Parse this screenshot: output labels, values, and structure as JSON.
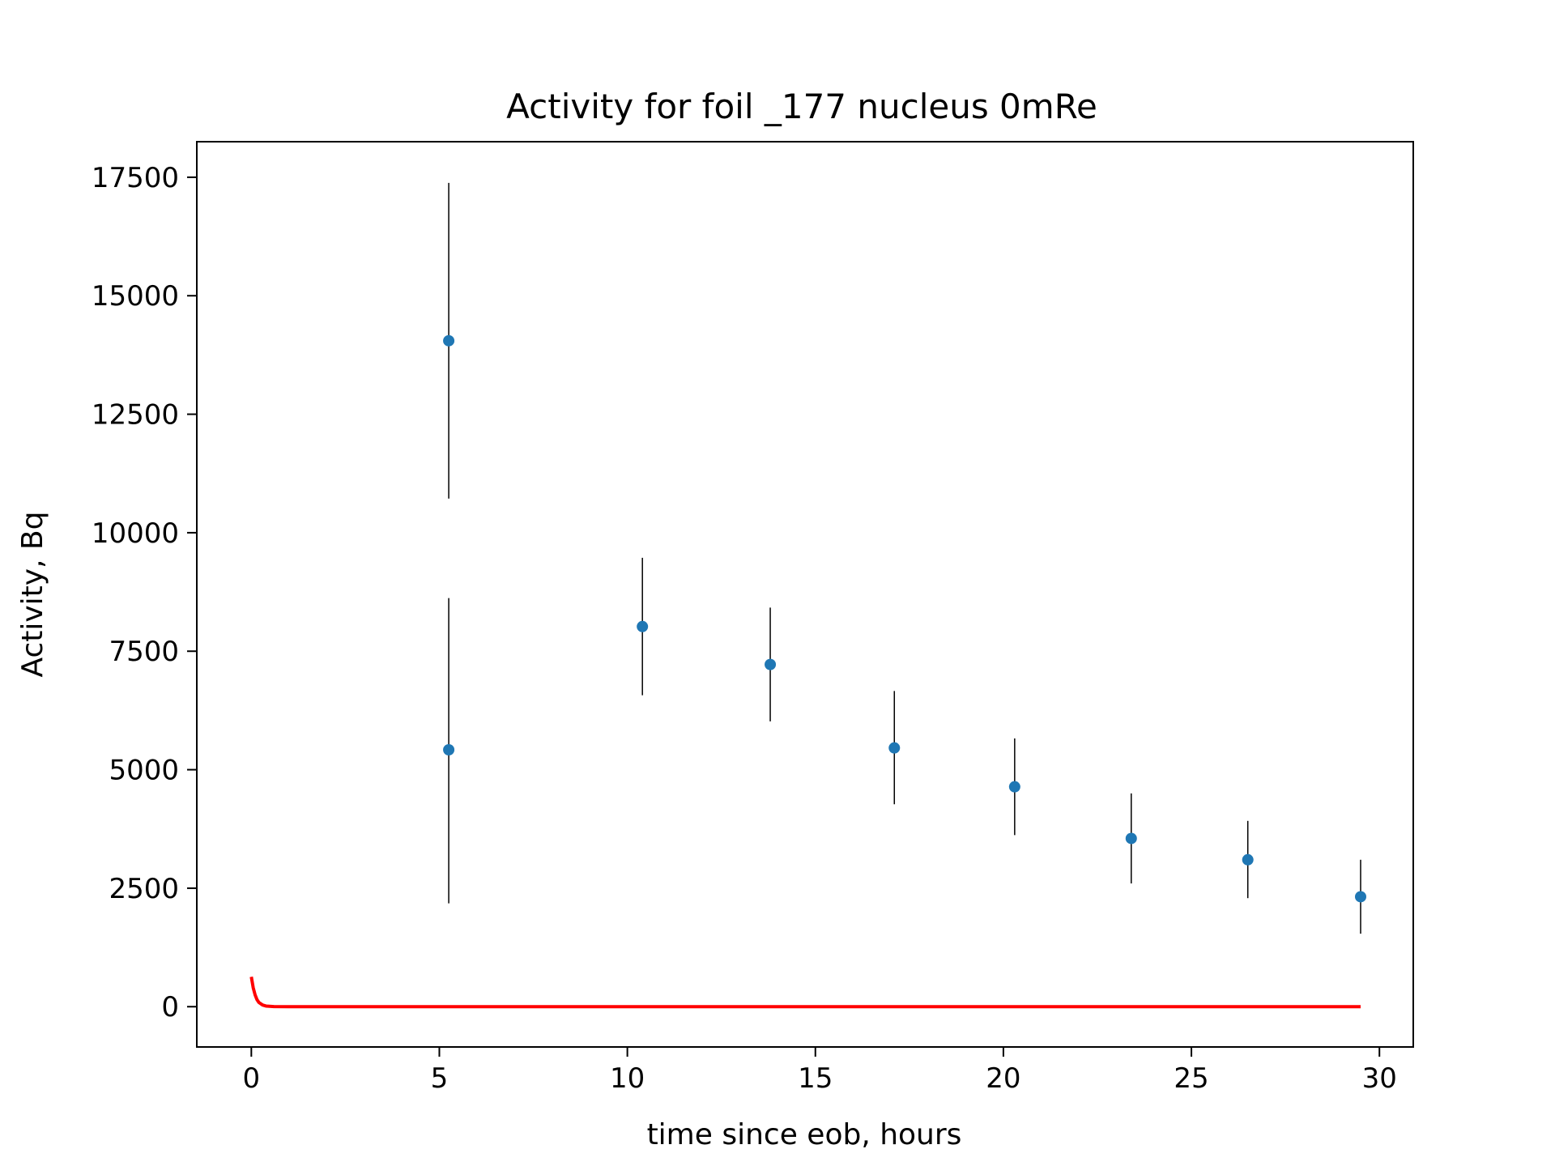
{
  "chart_data": {
    "type": "scatter",
    "title": "Activity for foil _177 nucleus 0mRe",
    "xlabel": "time since eob, hours",
    "ylabel": "Activity, Bq",
    "xlim": [
      -1.45,
      30.9
    ],
    "ylim": [
      -850,
      18250
    ],
    "xticks": [
      0,
      5,
      10,
      15,
      20,
      25,
      30
    ],
    "yticks": [
      0,
      2500,
      5000,
      7500,
      10000,
      12500,
      15000,
      17500
    ],
    "grid": false,
    "legend": "none",
    "colors": {
      "points": "#1f77b4",
      "errorbars": "#000000",
      "fit": "#ff0000",
      "frame": "#000000"
    },
    "points": [
      {
        "x": 5.25,
        "y": 14050,
        "err_low": 10720,
        "err_high": 17380
      },
      {
        "x": 5.25,
        "y": 5420,
        "err_low": 2180,
        "err_high": 8620
      },
      {
        "x": 10.4,
        "y": 8020,
        "err_low": 6570,
        "err_high": 9470
      },
      {
        "x": 13.8,
        "y": 7220,
        "err_low": 6020,
        "err_high": 8420
      },
      {
        "x": 17.1,
        "y": 5460,
        "err_low": 4270,
        "err_high": 6660
      },
      {
        "x": 20.3,
        "y": 4640,
        "err_low": 3620,
        "err_high": 5660
      },
      {
        "x": 23.4,
        "y": 3550,
        "err_low": 2600,
        "err_high": 4500
      },
      {
        "x": 26.5,
        "y": 3100,
        "err_low": 2290,
        "err_high": 3920
      },
      {
        "x": 29.5,
        "y": 2320,
        "err_low": 1540,
        "err_high": 3100
      }
    ],
    "fit_curve": {
      "x": [
        0,
        0.05,
        0.1,
        0.15,
        0.2,
        0.3,
        0.4,
        0.6,
        1,
        2,
        5,
        10,
        15,
        20,
        25,
        29.5
      ],
      "y": [
        630,
        400,
        250,
        150,
        90,
        35,
        12,
        2,
        0,
        0,
        0,
        0,
        0,
        0,
        0,
        0
      ]
    }
  }
}
